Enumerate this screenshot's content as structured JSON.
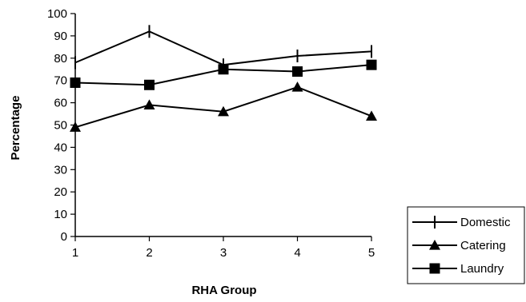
{
  "chart_data": {
    "type": "line",
    "title": "",
    "xlabel": "RHA Group",
    "ylabel": "Percentage",
    "x": [
      1,
      2,
      3,
      4,
      5
    ],
    "ylim": [
      0,
      100
    ],
    "yticks": [
      0,
      10,
      20,
      30,
      40,
      50,
      60,
      70,
      80,
      90,
      100
    ],
    "grid": false,
    "legend_position": "bottom-right",
    "series": [
      {
        "name": "Domestic",
        "marker": "plus",
        "values": [
          78,
          92,
          77,
          81,
          83
        ]
      },
      {
        "name": "Catering",
        "marker": "triangle",
        "values": [
          49,
          59,
          56,
          67,
          54
        ]
      },
      {
        "name": "Laundry",
        "marker": "square",
        "values": [
          69,
          68,
          75,
          74,
          77
        ]
      }
    ],
    "colors": {
      "line": "#000000",
      "background": "#ffffff"
    }
  }
}
